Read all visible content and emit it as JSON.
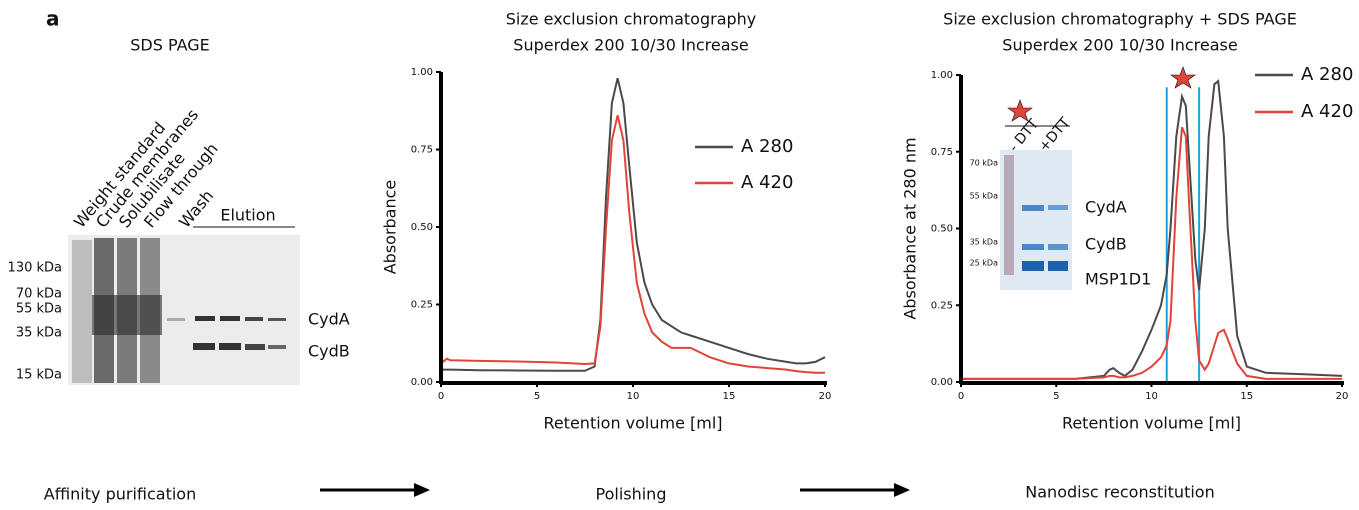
{
  "panel_label": "a",
  "gel": {
    "title": "SDS PAGE",
    "lanes": [
      "Weight standard",
      "Crude membranes",
      "Solubilisate",
      "Flow through",
      "Wash"
    ],
    "group_label": "Elution",
    "markers": [
      "130 kDa",
      "70 kDa",
      "55 kDa",
      "35 kDa",
      "15 kDa"
    ],
    "bands": [
      "CydA",
      "CydB"
    ]
  },
  "chart_data": [
    {
      "type": "line",
      "title": "Size exclusion chromatography",
      "subtitle": "Superdex 200 10/30 Increase",
      "xlabel": "Retention volume [ml]",
      "ylabel": "Absorbance",
      "x": [
        0,
        0.3,
        0.5,
        2,
        4,
        6,
        7.5,
        8,
        8.3,
        8.6,
        8.9,
        9.2,
        9.5,
        9.8,
        10.2,
        10.6,
        11,
        11.5,
        12,
        12.5,
        13,
        14,
        15,
        16,
        17,
        18,
        18.5,
        19,
        19.5,
        20
      ],
      "series": [
        {
          "name": "A 280",
          "color": "#4a4a4a",
          "values": [
            0.04,
            0.04,
            0.04,
            0.038,
            0.037,
            0.036,
            0.036,
            0.05,
            0.2,
            0.6,
            0.9,
            0.98,
            0.9,
            0.7,
            0.45,
            0.32,
            0.25,
            0.2,
            0.18,
            0.16,
            0.15,
            0.13,
            0.11,
            0.09,
            0.075,
            0.065,
            0.06,
            0.06,
            0.065,
            0.08
          ]
        },
        {
          "name": "A 420",
          "color": "#e0443a",
          "values": [
            0.06,
            0.075,
            0.07,
            0.068,
            0.066,
            0.063,
            0.058,
            0.06,
            0.18,
            0.5,
            0.78,
            0.86,
            0.78,
            0.55,
            0.32,
            0.22,
            0.16,
            0.13,
            0.11,
            0.11,
            0.11,
            0.08,
            0.06,
            0.05,
            0.045,
            0.04,
            0.035,
            0.032,
            0.03,
            0.03
          ]
        }
      ],
      "xlim": [
        0,
        20
      ],
      "xticks": [
        0,
        5,
        10,
        15,
        20
      ],
      "ylim": [
        0,
        1
      ],
      "yticks": [
        {
          "value": 0,
          "label": "0.00"
        },
        {
          "value": 0.25,
          "label": "0.25"
        },
        {
          "value": 0.5,
          "label": "0.50"
        },
        {
          "value": 0.75,
          "label": "0.75"
        },
        {
          "value": 1,
          "label": "1.00"
        }
      ]
    },
    {
      "type": "line",
      "title": "Size exclusion chromatography + SDS PAGE",
      "subtitle": "Superdex 200 10/30 Increase",
      "xlabel": "Retention volume [ml]",
      "ylabel": "Absorbance at 280 nm",
      "x": [
        0,
        2,
        4,
        6,
        7.5,
        7.8,
        8,
        8.3,
        8.6,
        9,
        9.5,
        10,
        10.5,
        10.8,
        11,
        11.3,
        11.6,
        11.8,
        12,
        12.3,
        12.5,
        12.8,
        13,
        13.3,
        13.5,
        13.8,
        14,
        14.5,
        15,
        16,
        18,
        20
      ],
      "series": [
        {
          "name": "A 280",
          "color": "#4a4a4a",
          "values": [
            0.01,
            0.01,
            0.01,
            0.01,
            0.02,
            0.04,
            0.045,
            0.03,
            0.02,
            0.04,
            0.1,
            0.17,
            0.25,
            0.35,
            0.5,
            0.8,
            0.93,
            0.9,
            0.7,
            0.4,
            0.3,
            0.5,
            0.8,
            0.97,
            0.98,
            0.8,
            0.5,
            0.15,
            0.05,
            0.03,
            0.025,
            0.02
          ]
        },
        {
          "name": "A 420",
          "color": "#e0443a",
          "values": [
            0.01,
            0.01,
            0.01,
            0.01,
            0.015,
            0.02,
            0.02,
            0.015,
            0.015,
            0.02,
            0.03,
            0.05,
            0.08,
            0.12,
            0.2,
            0.6,
            0.83,
            0.8,
            0.55,
            0.2,
            0.07,
            0.04,
            0.06,
            0.12,
            0.16,
            0.17,
            0.14,
            0.06,
            0.02,
            0.01,
            0.01,
            0.01
          ]
        }
      ],
      "vlines": [
        10.8,
        12.5
      ],
      "vline_color": "#1aa3e0",
      "xlim": [
        0,
        20
      ],
      "xticks": [
        0,
        5,
        10,
        15,
        20
      ],
      "ylim": [
        0,
        1
      ],
      "yticks": [
        {
          "value": 0,
          "label": "0.00"
        },
        {
          "value": 0.25,
          "label": "0.25"
        },
        {
          "value": 0.5,
          "label": "0.50"
        },
        {
          "value": 0.75,
          "label": "0.75"
        },
        {
          "value": 1,
          "label": "1.00"
        }
      ]
    }
  ],
  "inset": {
    "lanes": [
      "- DTT",
      "+DTT"
    ],
    "markers": [
      "70 kDa",
      "55 kDa",
      "35 kDa",
      "25 kDa"
    ],
    "bands": [
      "CydA",
      "CydB",
      "MSP1D1"
    ]
  },
  "steps": [
    "Affinity purification",
    "Polishing",
    "Nanodisc reconstitution"
  ]
}
